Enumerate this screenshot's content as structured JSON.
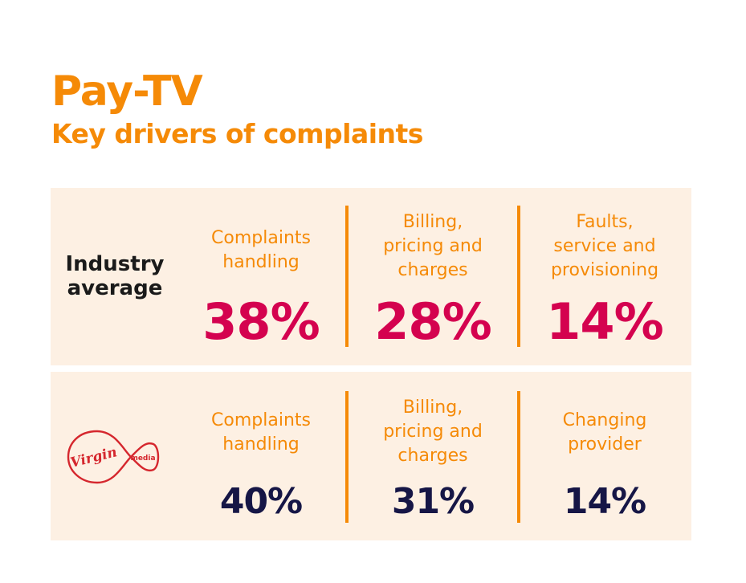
{
  "header": {
    "title": "Pay-TV",
    "subtitle": "Key drivers of complaints"
  },
  "colors": {
    "accent": "#f58a07",
    "panel_bg": "#fdf0e3",
    "industry_value": "#d4024f",
    "virgin_value": "#161646",
    "virgin_brand": "#d5272e"
  },
  "industry": {
    "label": "Industry\naverage",
    "drivers": [
      {
        "name": "Complaints\nhandling",
        "value": "38%"
      },
      {
        "name": "Billing,\npricing and\ncharges",
        "value": "28%"
      },
      {
        "name": "Faults,\nservice and\nprovisioning",
        "value": "14%"
      }
    ]
  },
  "virgin": {
    "logo_text": "Virgin",
    "logo_subtext": "media",
    "drivers": [
      {
        "name": "Complaints\nhandling",
        "value": "40%"
      },
      {
        "name": "Billing,\npricing and\ncharges",
        "value": "31%"
      },
      {
        "name": "Changing\nprovider",
        "value": "14%"
      }
    ]
  }
}
